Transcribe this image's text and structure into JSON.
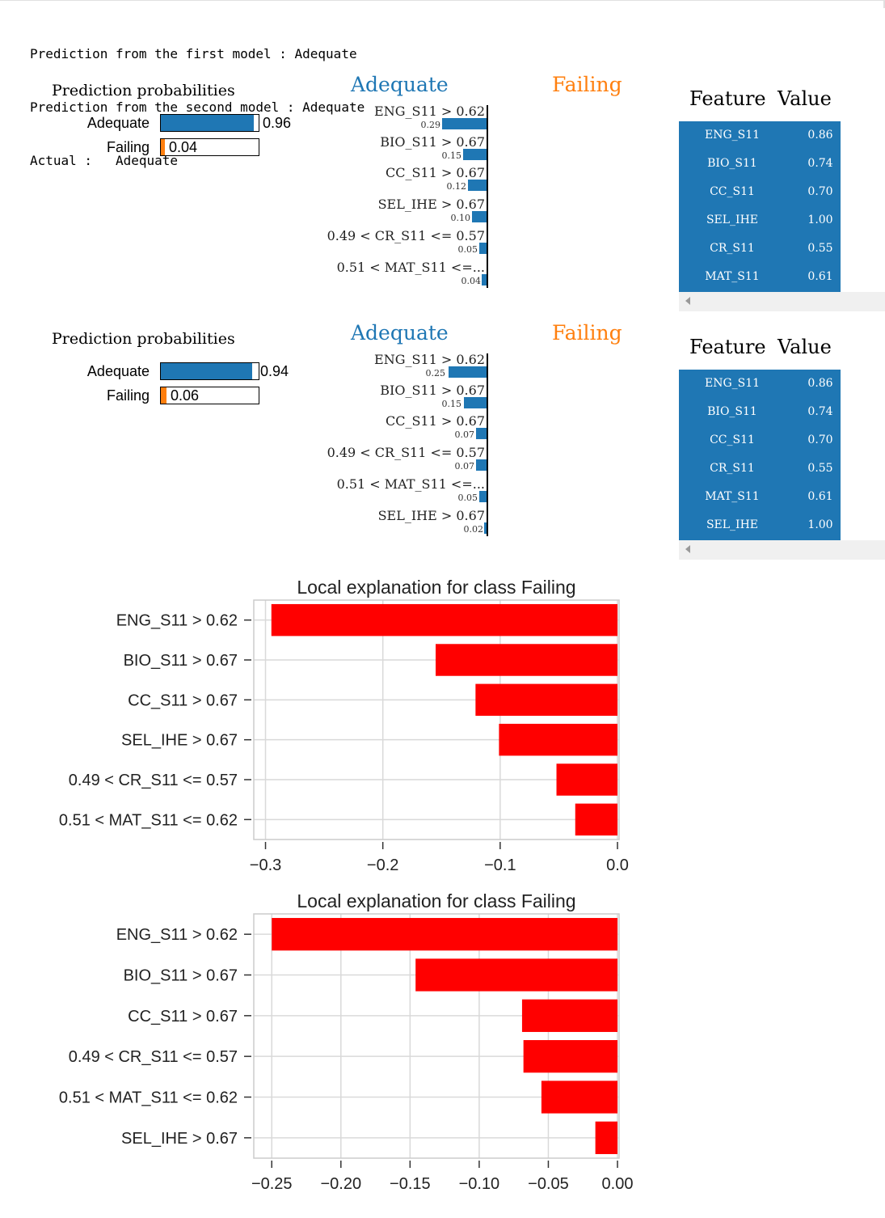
{
  "output_lines": [
    "Prediction from the first model : Adequate",
    "Prediction from the second model : Adequate",
    "Actual :   Adequate"
  ],
  "colors": {
    "adequate": "#1f77b4",
    "failing": "#ff7f0e",
    "bar_red": "#ff0000",
    "table_bg": "#1f77b4"
  },
  "lime_panels": [
    {
      "prob_title": "Prediction probabilities",
      "probs": [
        {
          "label": "Adequate",
          "value": 0.96,
          "text": "0.96"
        },
        {
          "label": "Failing",
          "value": 0.04,
          "text": "0.04"
        }
      ],
      "class_left": "Adequate",
      "class_right": "Failing",
      "features": [
        {
          "label": "ENG_S11 > 0.62",
          "weight": 0.29,
          "text": "0.29"
        },
        {
          "label": "BIO_S11 > 0.67",
          "weight": 0.15,
          "text": "0.15"
        },
        {
          "label": "CC_S11 > 0.67",
          "weight": 0.12,
          "text": "0.12"
        },
        {
          "label": "SEL_IHE > 0.67",
          "weight": 0.1,
          "text": "0.10"
        },
        {
          "label": "0.49 < CR_S11 <= 0.57",
          "weight": 0.05,
          "text": "0.05"
        },
        {
          "label": "0.51 < MAT_S11 <=...",
          "weight": 0.04,
          "text": "0.04"
        }
      ],
      "table_headers": [
        "Feature",
        "Value"
      ],
      "table_rows": [
        {
          "feature": "ENG_S11",
          "value": "0.86"
        },
        {
          "feature": "BIO_S11",
          "value": "0.74"
        },
        {
          "feature": "CC_S11",
          "value": "0.70"
        },
        {
          "feature": "SEL_IHE",
          "value": "1.00"
        },
        {
          "feature": "CR_S11",
          "value": "0.55"
        },
        {
          "feature": "MAT_S11",
          "value": "0.61"
        }
      ]
    },
    {
      "prob_title": "Prediction probabilities",
      "probs": [
        {
          "label": "Adequate",
          "value": 0.94,
          "text": "0.94"
        },
        {
          "label": "Failing",
          "value": 0.06,
          "text": "0.06"
        }
      ],
      "class_left": "Adequate",
      "class_right": "Failing",
      "features": [
        {
          "label": "ENG_S11 > 0.62",
          "weight": 0.25,
          "text": "0.25"
        },
        {
          "label": "BIO_S11 > 0.67",
          "weight": 0.15,
          "text": "0.15"
        },
        {
          "label": "CC_S11 > 0.67",
          "weight": 0.07,
          "text": "0.07"
        },
        {
          "label": "0.49 < CR_S11 <= 0.57",
          "weight": 0.07,
          "text": "0.07"
        },
        {
          "label": "0.51 < MAT_S11 <=...",
          "weight": 0.05,
          "text": "0.05"
        },
        {
          "label": "SEL_IHE > 0.67",
          "weight": 0.02,
          "text": "0.02"
        }
      ],
      "table_headers": [
        "Feature",
        "Value"
      ],
      "table_rows": [
        {
          "feature": "ENG_S11",
          "value": "0.86"
        },
        {
          "feature": "BIO_S11",
          "value": "0.74"
        },
        {
          "feature": "CC_S11",
          "value": "0.70"
        },
        {
          "feature": "CR_S11",
          "value": "0.55"
        },
        {
          "feature": "MAT_S11",
          "value": "0.61"
        },
        {
          "feature": "SEL_IHE",
          "value": "1.00"
        }
      ]
    }
  ],
  "chart_data": [
    {
      "type": "bar",
      "orientation": "horizontal",
      "title": "Local explanation for class Failing",
      "categories": [
        "ENG_S11 > 0.62",
        "BIO_S11 > 0.67",
        "CC_S11 > 0.67",
        "SEL_IHE > 0.67",
        "0.49 < CR_S11 <= 0.57",
        "0.51 < MAT_S11 <= 0.62"
      ],
      "values": [
        -0.295,
        -0.155,
        -0.121,
        -0.101,
        -0.052,
        -0.036
      ],
      "xlim": [
        -0.31,
        0.0
      ],
      "xticks": [
        -0.3,
        -0.2,
        -0.1,
        0.0
      ],
      "xtick_labels": [
        "−0.3",
        "−0.2",
        "−0.1",
        "0.0"
      ],
      "grid": true
    },
    {
      "type": "bar",
      "orientation": "horizontal",
      "title": "Local explanation for class Failing",
      "categories": [
        "ENG_S11 > 0.62",
        "BIO_S11 > 0.67",
        "CC_S11 > 0.67",
        "0.49 < CR_S11 <= 0.57",
        "0.51 < MAT_S11 <= 0.62",
        "SEL_IHE > 0.67"
      ],
      "values": [
        -0.25,
        -0.146,
        -0.069,
        -0.068,
        -0.055,
        -0.016
      ],
      "xlim": [
        -0.263,
        0.0
      ],
      "xticks": [
        -0.25,
        -0.2,
        -0.15,
        -0.1,
        -0.05,
        0.0
      ],
      "xtick_labels": [
        "−0.25",
        "−0.20",
        "−0.15",
        "−0.10",
        "−0.05",
        "0.00"
      ],
      "grid": true
    }
  ]
}
